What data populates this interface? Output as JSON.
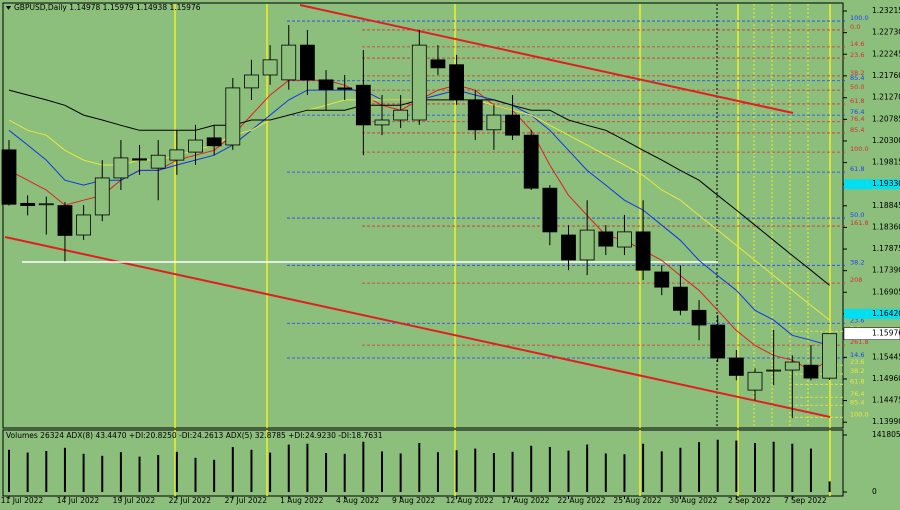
{
  "chart_data": {
    "type": "candlestick",
    "title": "GBPUSD,Daily",
    "categories": [
      "11 Jul 2022",
      null,
      null,
      "14 Jul 2022",
      null,
      null,
      "19 Jul 2022",
      null,
      null,
      "22 Jul 2022",
      null,
      null,
      "27 Jul 2022",
      null,
      null,
      "1 Aug 2022",
      null,
      null,
      "4 Aug 2022",
      null,
      null,
      "9 Aug 2022",
      null,
      null,
      "12 Aug 2022",
      null,
      null,
      "17 Aug 2022",
      null,
      null,
      "22 Aug 2022",
      null,
      null,
      "25 Aug 2022",
      null,
      null,
      "30 Aug 2022",
      null,
      null,
      "2 Sep 2022",
      null,
      null,
      "7 Sep 2022",
      null,
      null
    ],
    "open": [
      1.201,
      1.189,
      1.1887,
      1.1885,
      1.1819,
      1.1864,
      1.1947,
      1.199,
      1.1969,
      1.1987,
      1.2005,
      1.2037,
      1.2021,
      1.2149,
      1.2178,
      1.2167,
      1.2245,
      1.2167,
      1.2149,
      1.2155,
      1.2066,
      1.2077,
      1.2077,
      1.2212,
      1.2201,
      1.2122,
      1.2055,
      1.2088,
      1.2043,
      1.1924,
      1.1819,
      1.1763,
      1.1826,
      1.1792,
      1.1826,
      1.1736,
      1.1702,
      1.165,
      1.1617,
      1.1543,
      1.1471,
      1.1514,
      1.1516,
      1.1527,
      1.14978
    ],
    "high": [
      1.2032,
      1.1908,
      1.1905,
      1.1893,
      1.1886,
      1.1987,
      1.2032,
      1.2021,
      1.2032,
      1.2055,
      1.2066,
      1.2066,
      1.2171,
      1.2212,
      1.2245,
      1.229,
      1.2279,
      1.2189,
      1.2178,
      1.2234,
      1.2133,
      1.2133,
      1.2279,
      1.2245,
      1.2223,
      1.2144,
      1.2111,
      1.2133,
      1.2054,
      1.1931,
      1.1841,
      1.1897,
      1.1841,
      1.1864,
      1.1897,
      1.1751,
      1.1751,
      1.1673,
      1.1639,
      1.1561,
      1.152,
      1.1606,
      1.1549,
      1.1572,
      1.15979
    ],
    "low": [
      1.1885,
      1.1863,
      1.182,
      1.176,
      1.1808,
      1.185,
      1.192,
      1.1954,
      1.1897,
      1.1954,
      1.1976,
      1.1998,
      1.201,
      1.2122,
      1.2156,
      1.2145,
      1.2133,
      1.2099,
      1.2122,
      1.1998,
      1.2043,
      1.2059,
      1.2066,
      1.2178,
      1.2111,
      1.2032,
      1.201,
      1.2032,
      1.192,
      1.1796,
      1.174,
      1.1729,
      1.1774,
      1.1774,
      1.1718,
      1.1684,
      1.1639,
      1.1583,
      1.1534,
      1.1493,
      1.1448,
      1.1482,
      1.1408,
      1.1493,
      1.14938
    ],
    "close": [
      1.1888,
      1.1885,
      1.1889,
      1.1818,
      1.1864,
      1.1947,
      1.1992,
      1.1987,
      1.1998,
      1.201,
      1.2032,
      1.2019,
      1.2149,
      1.2178,
      1.2212,
      1.2245,
      1.2167,
      1.2145,
      1.2146,
      1.2066,
      1.2077,
      1.2099,
      1.2245,
      1.2194,
      1.2122,
      1.2055,
      1.2088,
      1.2043,
      1.1924,
      1.1826,
      1.1763,
      1.183,
      1.1794,
      1.1826,
      1.174,
      1.1702,
      1.165,
      1.1617,
      1.1543,
      1.1504,
      1.1511,
      1.1516,
      1.1534,
      1.1498,
      1.15976
    ],
    "series": [
      {
        "color": "#e02020",
        "values": [
          1.1964,
          1.1942,
          1.192,
          1.1886,
          1.1897,
          1.1908,
          1.1942,
          1.1964,
          1.1964,
          1.1987,
          1.1998,
          1.2009,
          1.2043,
          1.2088,
          1.2133,
          1.2166,
          1.2166,
          1.2166,
          1.2155,
          1.2133,
          1.211,
          1.2099,
          1.2122,
          1.2144,
          1.2155,
          1.2144,
          1.211,
          1.2099,
          1.2054,
          1.1976,
          1.1908,
          1.1863,
          1.1818,
          1.1807,
          1.1785,
          1.1762,
          1.1728,
          1.1695,
          1.165,
          1.1605,
          1.1571,
          1.1549,
          1.1538,
          1.1515,
          1.1538
        ]
      },
      {
        "color": "#1038e0",
        "values": [
          1.2054,
          1.2021,
          1.1987,
          1.1942,
          1.1931,
          1.1942,
          1.1942,
          1.1964,
          1.1964,
          1.1976,
          1.1987,
          1.1998,
          1.2021,
          1.2054,
          1.2088,
          1.2122,
          1.2144,
          1.2144,
          1.2144,
          1.2144,
          1.2122,
          1.2122,
          1.2122,
          1.2133,
          1.2144,
          1.2133,
          1.2122,
          1.211,
          1.2088,
          1.2054,
          1.2009,
          1.1964,
          1.1931,
          1.1897,
          1.1875,
          1.1841,
          1.1807,
          1.1762,
          1.1728,
          1.1695,
          1.165,
          1.1628,
          1.1594,
          1.1583,
          1.1571
        ]
      },
      {
        "color": "#e8e840",
        "values": [
          1.2077,
          1.2054,
          1.2043,
          1.2009,
          1.1987,
          1.1976,
          1.1976,
          1.1987,
          1.1987,
          1.1998,
          1.2009,
          1.2021,
          1.2043,
          1.2054,
          1.2077,
          1.2088,
          1.2099,
          1.211,
          1.2122,
          1.2122,
          1.2122,
          1.2122,
          1.2122,
          1.2122,
          1.2122,
          1.2122,
          1.211,
          1.2099,
          1.2088,
          1.2065,
          1.2043,
          1.2021,
          1.1998,
          1.1976,
          1.1953,
          1.192,
          1.1897,
          1.1863,
          1.183,
          1.1796,
          1.1762,
          1.1728,
          1.1695,
          1.1661,
          1.1628
        ]
      },
      {
        "color": "#000000",
        "values": [
          1.2144,
          1.2133,
          1.2122,
          1.211,
          1.2088,
          1.2077,
          1.2065,
          1.2054,
          1.2054,
          1.2054,
          1.2054,
          1.2065,
          1.2065,
          1.2077,
          1.2077,
          1.2088,
          1.2099,
          1.2099,
          1.2099,
          1.211,
          1.211,
          1.211,
          1.2122,
          1.2122,
          1.2122,
          1.2122,
          1.2122,
          1.211,
          1.2099,
          1.2099,
          1.2077,
          1.2065,
          1.2054,
          1.2032,
          1.2009,
          1.1987,
          1.1964,
          1.1942,
          1.1908,
          1.1875,
          1.1841,
          1.1807,
          1.1773,
          1.174,
          1.1706
        ]
      }
    ],
    "ylim": [
      1.1386,
      1.2335
    ],
    "yticks": [
      1.23215,
      {
        "value": 1.2273,
        "label": "1.22730"
      },
      1.22245,
      {
        "value": 1.2176,
        "label": "1.21760"
      },
      {
        "value": 1.2127,
        "label": "1.21270"
      },
      1.20785,
      {
        "value": 1.203,
        "label": "1.20300"
      },
      1.19815,
      {
        "value": 1.1933,
        "label": "1.19330",
        "highlight": true
      },
      1.18845,
      {
        "value": 1.1836,
        "label": "1.18360"
      },
      1.17875,
      {
        "value": 1.1739,
        "label": "1.17390"
      },
      1.16905,
      {
        "value": 1.1642,
        "label": "1.16420",
        "highlight": true
      },
      1.15445,
      {
        "value": 1.1496,
        "label": "1.14960"
      },
      1.14475,
      {
        "value": 1.1399,
        "label": "1.13990"
      }
    ],
    "levels": [
      {
        "label": "100.0",
        "value": 1.2299,
        "color": "#2040ff"
      },
      {
        "label": "0.0",
        "value": 1.2279,
        "color": "#d83030"
      },
      {
        "label": "14.6",
        "value": 1.2241,
        "color": "#d83030"
      },
      {
        "label": "23.6",
        "value": 1.2216,
        "color": "#d83030"
      },
      {
        "label": "38.2",
        "value": 1.2176,
        "color": "#d83030"
      },
      {
        "label": "85.4",
        "value": 1.2165,
        "color": "#2040ff"
      },
      {
        "label": "50.0",
        "value": 1.2144,
        "color": "#d83030"
      },
      {
        "label": "61.8",
        "value": 1.2113,
        "color": "#d83030"
      },
      {
        "label": "76.4",
        "value": 1.2088,
        "color": "#2040ff"
      },
      {
        "label": "76.4",
        "value": 1.2073,
        "color": "#d83030"
      },
      {
        "label": "85.4",
        "value": 1.2048,
        "color": "#d83030"
      },
      {
        "label": "100.0",
        "value": 1.2005,
        "color": "#d83030"
      },
      {
        "label": "61.8",
        "value": 1.196,
        "color": "#2040ff"
      },
      {
        "label": "50.0",
        "value": 1.1857,
        "color": "#2040ff"
      },
      {
        "label": "161.8",
        "value": 1.1839,
        "color": "#d83030"
      },
      {
        "label": "38.2",
        "value": 1.1751,
        "color": "#2040ff"
      },
      {
        "label": "208",
        "value": 1.1711,
        "color": "#d83030"
      },
      {
        "label": "23.6",
        "value": 1.1621,
        "color": "#2040ff"
      },
      {
        "label": "261.8",
        "value": 1.1572,
        "color": "#d83030"
      },
      {
        "label": "14.6",
        "value": 1.1543,
        "color": "#2040ff"
      },
      {
        "label": "0.0",
        "value": 1.1603,
        "color": "#e8e840"
      },
      {
        "label": "23.6",
        "value": 1.1527,
        "color": "#e8e840"
      },
      {
        "label": "38.2",
        "value": 1.1507,
        "color": "#e8e840"
      },
      {
        "label": "61.8",
        "value": 1.1484,
        "color": "#e8e840"
      },
      {
        "label": "76.4",
        "value": 1.1455,
        "color": "#e8e840"
      },
      {
        "label": "85.4",
        "value": 1.1437,
        "color": "#e8e840"
      },
      {
        "label": "100.0",
        "value": 1.141,
        "color": "#e8e840"
      }
    ],
    "volume": {
      "label": "Volumes 26324  ADX(8) 43.4470 +DI:20.8250 -DI:24.2613  ADX(5) 32.8785 +DI:24.9230 -DI:18.7631",
      "values": [
        105000,
        98000,
        102000,
        110000,
        95000,
        90000,
        99000,
        88000,
        92000,
        100000,
        85000,
        80000,
        112000,
        105000,
        98000,
        118000,
        120000,
        97000,
        95000,
        125000,
        101000,
        96000,
        122000,
        99000,
        104000,
        108000,
        97000,
        100000,
        115000,
        112000,
        103000,
        118000,
        96000,
        94000,
        120000,
        101000,
        110000,
        124000,
        130000,
        128000,
        122000,
        125000,
        120000,
        108000,
        26324
      ],
      "ylim": [
        0,
        141805
      ],
      "yticks": [
        141805,
        0
      ]
    }
  }
}
